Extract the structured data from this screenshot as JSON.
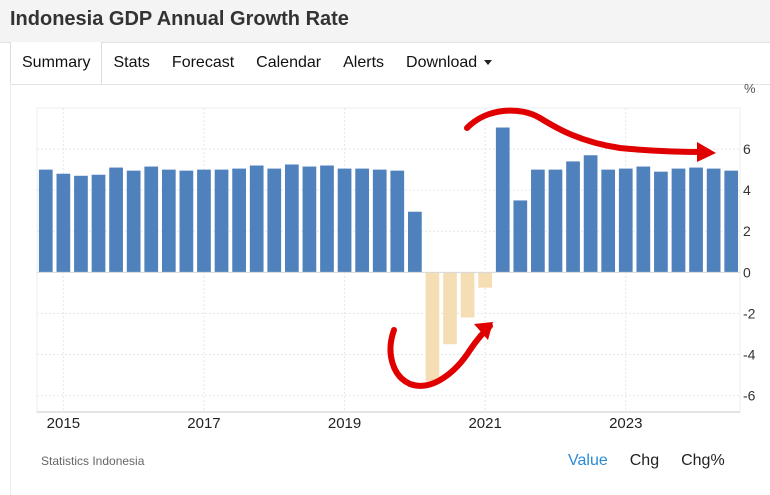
{
  "title": "Indonesia GDP Annual Growth Rate",
  "tabs": [
    "Summary",
    "Stats",
    "Forecast",
    "Calendar",
    "Alerts",
    "Download"
  ],
  "source": "Statistics Indonesia",
  "footer": {
    "value": "Value",
    "chg": "Chg",
    "chgpct": "Chg%"
  },
  "colors": {
    "positive": "#4f81bd",
    "negative": "#f5deb3",
    "annotation": "#e00000"
  },
  "chart_data": {
    "type": "bar",
    "unit_label": "%",
    "x": [
      "2014Q4",
      "2015Q1",
      "2015Q2",
      "2015Q3",
      "2015Q4",
      "2016Q1",
      "2016Q2",
      "2016Q3",
      "2016Q4",
      "2017Q1",
      "2017Q2",
      "2017Q3",
      "2017Q4",
      "2018Q1",
      "2018Q2",
      "2018Q3",
      "2018Q4",
      "2019Q1",
      "2019Q2",
      "2019Q3",
      "2019Q4",
      "2020Q1",
      "2020Q2",
      "2020Q3",
      "2020Q4",
      "2021Q1",
      "2021Q2",
      "2021Q3",
      "2021Q4",
      "2022Q1",
      "2022Q2",
      "2022Q3",
      "2022Q4",
      "2023Q1",
      "2023Q2",
      "2023Q3",
      "2023Q4",
      "2024Q1",
      "2024Q2",
      "2024Q3"
    ],
    "values": [
      5.0,
      4.8,
      4.7,
      4.75,
      5.1,
      4.95,
      5.15,
      5.0,
      4.95,
      5.0,
      5.0,
      5.05,
      5.2,
      5.05,
      5.25,
      5.15,
      5.2,
      5.05,
      5.05,
      5.0,
      4.95,
      2.95,
      -5.3,
      -3.5,
      -2.2,
      -0.75,
      7.05,
      3.5,
      5.0,
      5.0,
      5.4,
      5.7,
      5.0,
      5.05,
      5.15,
      4.9,
      5.05,
      5.1,
      5.05,
      4.95
    ],
    "x_tick_labels": [
      "2015",
      "2017",
      "2019",
      "2021",
      "2023"
    ],
    "y_ticks": [
      -6,
      -4,
      -2,
      0,
      2,
      4,
      6
    ],
    "ylim": [
      -6.8,
      8
    ],
    "grid": true
  }
}
